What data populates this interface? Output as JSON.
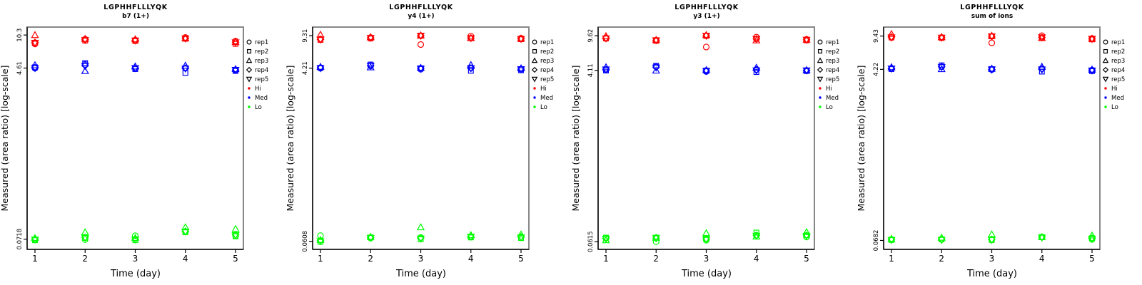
{
  "figure": {
    "xlabel": "Time (day)",
    "ylabel": "Measured (area ratio) [log-scale]",
    "peptide": "LGPHHFLLLYQK"
  },
  "legend": {
    "reps": [
      {
        "label": "rep1",
        "symbol": "circle"
      },
      {
        "label": "rep2",
        "symbol": "square"
      },
      {
        "label": "rep3",
        "symbol": "triangle-up"
      },
      {
        "label": "rep4",
        "symbol": "diamond"
      },
      {
        "label": "rep5",
        "symbol": "triangle-down"
      }
    ],
    "levels": [
      {
        "label": "Hi",
        "color": "#FF0000"
      },
      {
        "label": "Med",
        "color": "#0000FF"
      },
      {
        "label": "Lo",
        "color": "#00FF00"
      }
    ]
  },
  "style": {
    "box_color": "#878787",
    "axis_color": "#000000"
  },
  "chart_data": [
    {
      "type": "scatter",
      "title": "LGPHHFLLLYQK",
      "subtitle": "b7 (1+)",
      "xlabel": "Time (day)",
      "ylabel": "Measured (area ratio) [log-scale]",
      "x_days": [
        1,
        2,
        3,
        4,
        5
      ],
      "yscale": "log",
      "ylim": [
        0.056,
        12.5
      ],
      "yticks": [
        {
          "value": 10.3,
          "label": "10.3"
        },
        {
          "value": 4.61,
          "label": "4.61"
        },
        {
          "value": 0.0718,
          "label": "0.0718"
        }
      ],
      "levels": [
        {
          "name": "Hi",
          "color": "#FF0000",
          "reps": [
            {
              "name": "rep1",
              "symbol": "circle",
              "values": [
                8.3,
                9.3,
                9.1,
                9.7,
                8.9
              ]
            },
            {
              "name": "rep2",
              "symbol": "square",
              "values": [
                8.5,
                9.0,
                8.9,
                9.4,
                8.3
              ]
            },
            {
              "name": "rep3",
              "symbol": "triangle-up",
              "values": [
                10.3,
                9.4,
                9.3,
                9.55,
                8.7
              ]
            },
            {
              "name": "rep4",
              "symbol": "diamond",
              "values": [
                8.6,
                9.2,
                9.05,
                9.5,
                8.65
              ]
            },
            {
              "name": "rep5",
              "symbol": "triangle-down",
              "values": [
                8.5,
                9.1,
                9.0,
                9.45,
                8.6
              ]
            }
          ]
        },
        {
          "name": "Med",
          "color": "#0000FF",
          "reps": [
            {
              "name": "rep1",
              "symbol": "circle",
              "values": [
                4.6,
                5.05,
                4.6,
                4.6,
                4.4
              ]
            },
            {
              "name": "rep2",
              "symbol": "square",
              "values": [
                4.7,
                5.2,
                4.5,
                4.1,
                4.3
              ]
            },
            {
              "name": "rep3",
              "symbol": "triangle-up",
              "values": [
                4.95,
                4.3,
                4.8,
                4.9,
                4.5
              ]
            },
            {
              "name": "rep4",
              "symbol": "diamond",
              "values": [
                4.65,
                4.9,
                4.6,
                4.6,
                4.4
              ]
            },
            {
              "name": "rep5",
              "symbol": "triangle-down",
              "values": [
                4.6,
                4.85,
                4.6,
                4.55,
                4.4
              ]
            }
          ]
        },
        {
          "name": "Lo",
          "color": "#00FF00",
          "reps": [
            {
              "name": "rep1",
              "symbol": "circle",
              "values": [
                0.071,
                0.071,
                0.078,
                0.086,
                0.078
              ]
            },
            {
              "name": "rep2",
              "symbol": "square",
              "values": [
                0.07,
                0.074,
                0.07,
                0.085,
                0.077
              ]
            },
            {
              "name": "rep3",
              "symbol": "triangle-up",
              "values": [
                0.074,
                0.085,
                0.074,
                0.096,
                0.092
              ]
            },
            {
              "name": "rep4",
              "symbol": "diamond",
              "values": [
                0.072,
                0.075,
                0.072,
                0.087,
                0.08
              ]
            },
            {
              "name": "rep5",
              "symbol": "triangle-down",
              "values": [
                0.071,
                0.074,
                0.071,
                0.086,
                0.079
              ]
            }
          ]
        }
      ]
    },
    {
      "type": "scatter",
      "title": "LGPHHFLLLYQK",
      "subtitle": "y4 (1+)",
      "xlabel": "Time (day)",
      "ylabel": "Measured (area ratio) [log-scale]",
      "x_days": [
        1,
        2,
        3,
        4,
        5
      ],
      "yscale": "log",
      "ylim": [
        0.05,
        11.5
      ],
      "yticks": [
        {
          "value": 9.31,
          "label": "9.31"
        },
        {
          "value": 4.21,
          "label": "4.21"
        },
        {
          "value": 0.0608,
          "label": "0.0608"
        }
      ],
      "levels": [
        {
          "name": "Hi",
          "color": "#FF0000",
          "reps": [
            {
              "name": "rep1",
              "symbol": "circle",
              "values": [
                8.6,
                8.9,
                7.5,
                9.2,
                8.75
              ]
            },
            {
              "name": "rep2",
              "symbol": "square",
              "values": [
                8.4,
                8.7,
                9.3,
                8.75,
                8.55
              ]
            },
            {
              "name": "rep3",
              "symbol": "triangle-up",
              "values": [
                9.55,
                9.0,
                9.4,
                8.8,
                8.7
              ]
            },
            {
              "name": "rep4",
              "symbol": "diamond",
              "values": [
                8.5,
                8.85,
                9.3,
                8.8,
                8.65
              ]
            },
            {
              "name": "rep5",
              "symbol": "triangle-down",
              "values": [
                8.45,
                8.8,
                9.3,
                8.75,
                8.6
              ]
            }
          ]
        },
        {
          "name": "Med",
          "color": "#0000FF",
          "reps": [
            {
              "name": "rep1",
              "symbol": "circle",
              "values": [
                4.2,
                4.45,
                4.1,
                4.25,
                4.1
              ]
            },
            {
              "name": "rep2",
              "symbol": "square",
              "values": [
                4.25,
                4.6,
                4.2,
                3.95,
                4.0
              ]
            },
            {
              "name": "rep3",
              "symbol": "triangle-up",
              "values": [
                4.35,
                4.3,
                4.25,
                4.55,
                4.2
              ]
            },
            {
              "name": "rep4",
              "symbol": "diamond",
              "values": [
                4.25,
                4.5,
                4.2,
                4.2,
                4.1
              ]
            },
            {
              "name": "rep5",
              "symbol": "triangle-down",
              "values": [
                4.2,
                4.45,
                4.15,
                4.2,
                4.1
              ]
            }
          ]
        },
        {
          "name": "Lo",
          "color": "#00FF00",
          "reps": [
            {
              "name": "rep1",
              "symbol": "circle",
              "values": [
                0.07,
                0.066,
                0.067,
                0.068,
                0.068
              ]
            },
            {
              "name": "rep2",
              "symbol": "square",
              "values": [
                0.06,
                0.067,
                0.064,
                0.067,
                0.066
              ]
            },
            {
              "name": "rep3",
              "symbol": "triangle-up",
              "values": [
                0.063,
                0.068,
                0.086,
                0.071,
                0.072
              ]
            },
            {
              "name": "rep4",
              "symbol": "diamond",
              "values": [
                0.062,
                0.067,
                0.066,
                0.068,
                0.068
              ]
            },
            {
              "name": "rep5",
              "symbol": "triangle-down",
              "values": [
                0.061,
                0.066,
                0.065,
                0.068,
                0.067
              ]
            }
          ]
        }
      ]
    },
    {
      "type": "scatter",
      "title": "LGPHHFLLLYQK",
      "subtitle": "y3 (1+)",
      "xlabel": "Time (day)",
      "ylabel": "Measured (area ratio) [log-scale]",
      "x_days": [
        1,
        2,
        3,
        4,
        5
      ],
      "yscale": "log",
      "ylim": [
        0.051,
        11.9
      ],
      "yticks": [
        {
          "value": 9.62,
          "label": "9.62"
        },
        {
          "value": 4.11,
          "label": "4.11"
        },
        {
          "value": 0.0615,
          "label": "0.0615"
        }
      ],
      "levels": [
        {
          "name": "Hi",
          "color": "#FF0000",
          "reps": [
            {
              "name": "rep1",
              "symbol": "circle",
              "values": [
                9.0,
                8.6,
                7.3,
                9.3,
                8.8
              ]
            },
            {
              "name": "rep2",
              "symbol": "square",
              "values": [
                9.0,
                8.5,
                9.6,
                8.9,
                8.6
              ]
            },
            {
              "name": "rep3",
              "symbol": "triangle-up",
              "values": [
                9.55,
                8.7,
                9.8,
                8.6,
                8.75
              ]
            },
            {
              "name": "rep4",
              "symbol": "diamond",
              "values": [
                9.1,
                8.6,
                9.6,
                8.9,
                8.7
              ]
            },
            {
              "name": "rep5",
              "symbol": "triangle-down",
              "values": [
                9.0,
                8.6,
                9.6,
                8.85,
                8.7
              ]
            }
          ]
        },
        {
          "name": "Med",
          "color": "#0000FF",
          "reps": [
            {
              "name": "rep1",
              "symbol": "circle",
              "values": [
                4.2,
                4.5,
                4.0,
                4.2,
                4.1
              ]
            },
            {
              "name": "rep2",
              "symbol": "square",
              "values": [
                4.1,
                4.6,
                4.1,
                3.95,
                4.05
              ]
            },
            {
              "name": "rep3",
              "symbol": "triangle-up",
              "values": [
                4.45,
                4.1,
                4.15,
                4.4,
                4.15
              ]
            },
            {
              "name": "rep4",
              "symbol": "diamond",
              "values": [
                4.2,
                4.45,
                4.05,
                4.15,
                4.1
              ]
            },
            {
              "name": "rep5",
              "symbol": "triangle-down",
              "values": [
                4.2,
                4.4,
                4.05,
                4.1,
                4.1
              ]
            }
          ]
        },
        {
          "name": "Lo",
          "color": "#00FF00",
          "reps": [
            {
              "name": "rep1",
              "symbol": "circle",
              "values": [
                0.067,
                0.0615,
                0.064,
                0.072,
                0.069
              ]
            },
            {
              "name": "rep2",
              "symbol": "square",
              "values": [
                0.068,
                0.068,
                0.066,
                0.077,
                0.072
              ]
            },
            {
              "name": "rep3",
              "symbol": "triangle-up",
              "values": [
                0.064,
                0.068,
                0.076,
                0.07,
                0.078
              ]
            },
            {
              "name": "rep4",
              "symbol": "diamond",
              "values": [
                0.067,
                0.067,
                0.066,
                0.072,
                0.072
              ]
            },
            {
              "name": "rep5",
              "symbol": "triangle-down",
              "values": [
                0.066,
                0.067,
                0.065,
                0.071,
                0.071
              ]
            }
          ]
        }
      ]
    },
    {
      "type": "scatter",
      "title": "LGPHHFLLLYQK",
      "subtitle": "sum of ions",
      "xlabel": "Time (day)",
      "ylabel": "Measured (area ratio) [log-scale]",
      "x_days": [
        1,
        2,
        3,
        4,
        5
      ],
      "yscale": "log",
      "ylim": [
        0.055,
        11.7
      ],
      "yticks": [
        {
          "value": 9.43,
          "label": "9.43"
        },
        {
          "value": 4.22,
          "label": "4.22"
        },
        {
          "value": 0.0682,
          "label": "0.0682"
        }
      ],
      "levels": [
        {
          "name": "Hi",
          "color": "#FF0000",
          "reps": [
            {
              "name": "rep1",
              "symbol": "circle",
              "values": [
                9.1,
                9.1,
                8.0,
                9.5,
                8.9
              ]
            },
            {
              "name": "rep2",
              "symbol": "square",
              "values": [
                9.1,
                9.0,
                9.35,
                9.1,
                8.7
              ]
            },
            {
              "name": "rep3",
              "symbol": "triangle-up",
              "values": [
                9.9,
                9.2,
                9.5,
                9.0,
                8.85
              ]
            },
            {
              "name": "rep4",
              "symbol": "diamond",
              "values": [
                9.2,
                9.1,
                9.35,
                9.1,
                8.8
              ]
            },
            {
              "name": "rep5",
              "symbol": "triangle-down",
              "values": [
                9.1,
                9.05,
                9.35,
                9.1,
                8.8
              ]
            }
          ]
        },
        {
          "name": "Med",
          "color": "#0000FF",
          "reps": [
            {
              "name": "rep1",
              "symbol": "circle",
              "values": [
                4.3,
                4.5,
                4.2,
                4.3,
                4.15
              ]
            },
            {
              "name": "rep2",
              "symbol": "square",
              "values": [
                4.25,
                4.65,
                4.25,
                4.0,
                4.05
              ]
            },
            {
              "name": "rep3",
              "symbol": "triangle-up",
              "values": [
                4.45,
                4.25,
                4.3,
                4.5,
                4.2
              ]
            },
            {
              "name": "rep4",
              "symbol": "diamond",
              "values": [
                4.3,
                4.5,
                4.2,
                4.25,
                4.15
              ]
            },
            {
              "name": "rep5",
              "symbol": "triangle-down",
              "values": [
                4.3,
                4.45,
                4.2,
                4.2,
                4.1
              ]
            }
          ]
        },
        {
          "name": "Lo",
          "color": "#00FF00",
          "reps": [
            {
              "name": "rep1",
              "symbol": "circle",
              "values": [
                0.07,
                0.07,
                0.07,
                0.074,
                0.07
              ]
            },
            {
              "name": "rep2",
              "symbol": "square",
              "values": [
                0.069,
                0.07,
                0.069,
                0.074,
                0.072
              ]
            },
            {
              "name": "rep3",
              "symbol": "triangle-up",
              "values": [
                0.071,
                0.073,
                0.079,
                0.074,
                0.077
              ]
            },
            {
              "name": "rep4",
              "symbol": "diamond",
              "values": [
                0.07,
                0.07,
                0.07,
                0.074,
                0.072
              ]
            },
            {
              "name": "rep5",
              "symbol": "triangle-down",
              "values": [
                0.069,
                0.069,
                0.069,
                0.073,
                0.071
              ]
            }
          ]
        }
      ]
    }
  ]
}
